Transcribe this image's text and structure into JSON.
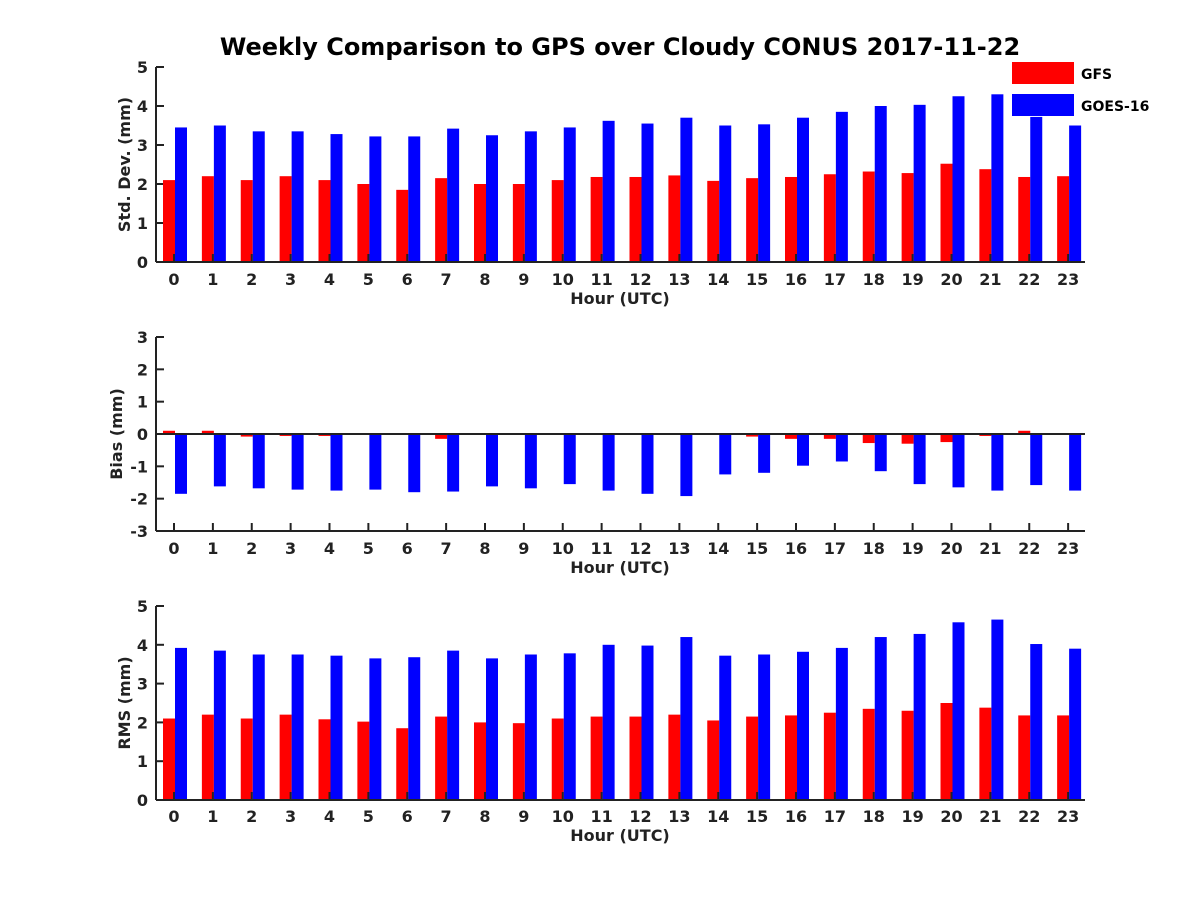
{
  "title": "Weekly Comparison to GPS over Cloudy CONUS 2017-11-22",
  "legend": {
    "placement": "top-right",
    "entries": [
      {
        "name": "GFS",
        "color": "#ff0000"
      },
      {
        "name": "GOES-16",
        "color": "#0000ff"
      }
    ]
  },
  "colors": {
    "GFS": "#ff0000",
    "GOES-16": "#0000ff",
    "axis": "#222222"
  },
  "chart_data": [
    {
      "type": "bar",
      "xlabel": "Hour (UTC)",
      "ylabel": "Std. Dev. (mm)",
      "categories": [
        "0",
        "1",
        "2",
        "3",
        "4",
        "5",
        "6",
        "7",
        "8",
        "9",
        "10",
        "11",
        "12",
        "13",
        "14",
        "15",
        "16",
        "17",
        "18",
        "19",
        "20",
        "21",
        "22",
        "23"
      ],
      "ylim": [
        0,
        5
      ],
      "yticks": [
        "0",
        "1",
        "2",
        "3",
        "4",
        "5"
      ],
      "grid": false,
      "series": [
        {
          "name": "GFS",
          "values": [
            2.1,
            2.2,
            2.1,
            2.2,
            2.1,
            2.0,
            1.85,
            2.15,
            2.0,
            2.0,
            2.1,
            2.18,
            2.18,
            2.22,
            2.08,
            2.15,
            2.18,
            2.25,
            2.32,
            2.28,
            2.52,
            2.38,
            2.18,
            2.2
          ]
        },
        {
          "name": "GOES-16",
          "values": [
            3.45,
            3.5,
            3.35,
            3.35,
            3.28,
            3.22,
            3.22,
            3.42,
            3.25,
            3.35,
            3.45,
            3.62,
            3.55,
            3.7,
            3.5,
            3.53,
            3.7,
            3.85,
            4.0,
            4.03,
            4.25,
            4.3,
            3.72,
            3.5
          ]
        }
      ]
    },
    {
      "type": "bar",
      "xlabel": "Hour (UTC)",
      "ylabel": "Bias (mm)",
      "categories": [
        "0",
        "1",
        "2",
        "3",
        "4",
        "5",
        "6",
        "7",
        "8",
        "9",
        "10",
        "11",
        "12",
        "13",
        "14",
        "15",
        "16",
        "17",
        "18",
        "19",
        "20",
        "21",
        "22",
        "23"
      ],
      "ylim": [
        -3,
        3
      ],
      "yticks": [
        "-3",
        "-2",
        "-1",
        "0",
        "1",
        "2",
        "3"
      ],
      "grid": false,
      "series": [
        {
          "name": "GFS",
          "values": [
            0.1,
            0.1,
            -0.08,
            -0.06,
            -0.06,
            0.0,
            -0.03,
            -0.15,
            -0.03,
            0.0,
            0.03,
            0.03,
            -0.02,
            0.0,
            0.03,
            -0.08,
            -0.15,
            -0.15,
            -0.28,
            -0.3,
            -0.25,
            -0.06,
            0.1,
            0.0
          ]
        },
        {
          "name": "GOES-16",
          "values": [
            -1.85,
            -1.62,
            -1.68,
            -1.72,
            -1.75,
            -1.72,
            -1.8,
            -1.78,
            -1.62,
            -1.68,
            -1.55,
            -1.75,
            -1.85,
            -1.92,
            -1.25,
            -1.2,
            -0.98,
            -0.85,
            -1.15,
            -1.55,
            -1.65,
            -1.75,
            -1.58,
            -1.75
          ]
        }
      ]
    },
    {
      "type": "bar",
      "xlabel": "Hour (UTC)",
      "ylabel": "RMS (mm)",
      "categories": [
        "0",
        "1",
        "2",
        "3",
        "4",
        "5",
        "6",
        "7",
        "8",
        "9",
        "10",
        "11",
        "12",
        "13",
        "14",
        "15",
        "16",
        "17",
        "18",
        "19",
        "20",
        "21",
        "22",
        "23"
      ],
      "ylim": [
        0,
        5
      ],
      "yticks": [
        "0",
        "1",
        "2",
        "3",
        "4",
        "5"
      ],
      "grid": false,
      "series": [
        {
          "name": "GFS",
          "values": [
            2.1,
            2.2,
            2.1,
            2.2,
            2.08,
            2.02,
            1.85,
            2.15,
            2.0,
            1.98,
            2.1,
            2.15,
            2.15,
            2.2,
            2.05,
            2.15,
            2.18,
            2.25,
            2.35,
            2.3,
            2.5,
            2.38,
            2.18,
            2.18
          ]
        },
        {
          "name": "GOES-16",
          "values": [
            3.92,
            3.85,
            3.75,
            3.75,
            3.72,
            3.65,
            3.68,
            3.85,
            3.65,
            3.75,
            3.78,
            4.0,
            3.98,
            4.2,
            3.72,
            3.75,
            3.82,
            3.92,
            4.2,
            4.28,
            4.58,
            4.65,
            4.02,
            3.9
          ]
        }
      ]
    }
  ]
}
